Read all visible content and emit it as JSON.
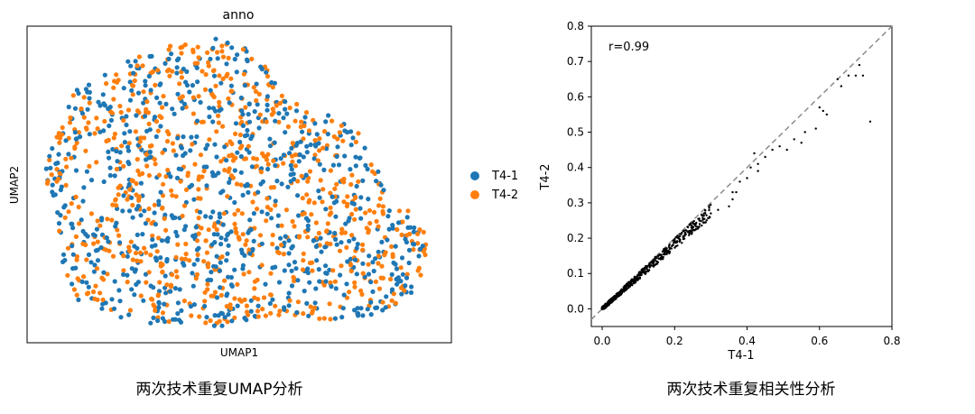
{
  "colors": {
    "t4_1": "#1f77b4",
    "t4_2": "#ff7f0e",
    "scatter": "#000000",
    "diagonal": "#8c8c8c"
  },
  "chart_data": [
    {
      "type": "scatter",
      "title": "anno",
      "xlabel": "UMAP1",
      "ylabel": "UMAP2",
      "grid": false,
      "ticks": false,
      "legend_position": "right",
      "series": [
        {
          "name": "T4-1",
          "color": "#1f77b4",
          "points_approx": 900
        },
        {
          "name": "T4-2",
          "color": "#ff7f0e",
          "points_approx": 900
        }
      ],
      "caption": "两次技术重复UMAP分析"
    },
    {
      "type": "scatter",
      "title": "",
      "xlabel": "T4-1",
      "ylabel": "T4-2",
      "xlim": [
        -0.03,
        0.8
      ],
      "ylim": [
        -0.05,
        0.8
      ],
      "xticks": [
        "0.0",
        "0.2",
        "0.4",
        "0.6",
        "0.8"
      ],
      "yticks": [
        "0.0",
        "0.1",
        "0.2",
        "0.3",
        "0.4",
        "0.5",
        "0.6",
        "0.7",
        "0.8"
      ],
      "annotation": "r=0.99",
      "reference_line": "y = x (dashed)",
      "grid": false,
      "points": [
        [
          0.74,
          0.53
        ],
        [
          0.72,
          0.66
        ],
        [
          0.71,
          0.69
        ],
        [
          0.7,
          0.66
        ],
        [
          0.68,
          0.66
        ],
        [
          0.66,
          0.63
        ],
        [
          0.65,
          0.65
        ],
        [
          0.62,
          0.55
        ],
        [
          0.61,
          0.56
        ],
        [
          0.6,
          0.57
        ],
        [
          0.59,
          0.51
        ],
        [
          0.56,
          0.5
        ],
        [
          0.55,
          0.47
        ],
        [
          0.53,
          0.48
        ],
        [
          0.51,
          0.45
        ],
        [
          0.49,
          0.46
        ],
        [
          0.47,
          0.45
        ],
        [
          0.45,
          0.43
        ],
        [
          0.43,
          0.39
        ],
        [
          0.43,
          0.41
        ],
        [
          0.42,
          0.44
        ],
        [
          0.41,
          0.4
        ],
        [
          0.4,
          0.37
        ],
        [
          0.38,
          0.36
        ],
        [
          0.37,
          0.33
        ],
        [
          0.36,
          0.31
        ],
        [
          0.36,
          0.33
        ],
        [
          0.35,
          0.29
        ],
        [
          0.32,
          0.28
        ],
        [
          0.3,
          0.27
        ]
      ],
      "caption": "两次技术重复相关性分析"
    }
  ]
}
